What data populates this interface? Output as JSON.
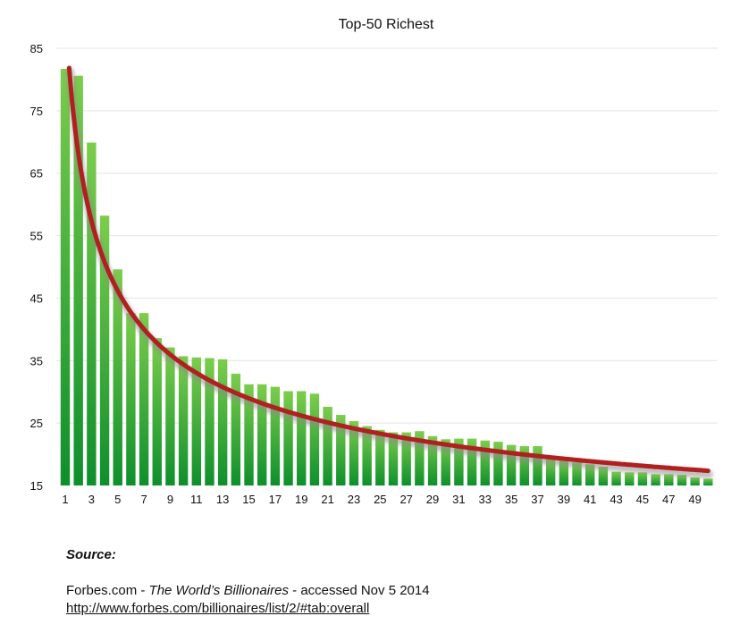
{
  "chart_data": {
    "type": "bar",
    "title": "Top-50 Richest",
    "xlabel": "",
    "ylabel": "",
    "ylim": [
      15,
      85
    ],
    "yticks": [
      15,
      25,
      35,
      45,
      55,
      65,
      75,
      85
    ],
    "xtick_labels": [
      1,
      3,
      5,
      7,
      9,
      11,
      13,
      15,
      17,
      19,
      21,
      23,
      25,
      27,
      29,
      31,
      33,
      35,
      37,
      39,
      41,
      43,
      45,
      47,
      49
    ],
    "categories": [
      1,
      2,
      3,
      4,
      5,
      6,
      7,
      8,
      9,
      10,
      11,
      12,
      13,
      14,
      15,
      16,
      17,
      18,
      19,
      20,
      21,
      22,
      23,
      24,
      25,
      26,
      27,
      28,
      29,
      30,
      31,
      32,
      33,
      34,
      35,
      36,
      37,
      38,
      39,
      40,
      41,
      42,
      43,
      44,
      45,
      46,
      47,
      48,
      49,
      50
    ],
    "values": [
      81.7,
      80.6,
      69.9,
      58.2,
      49.6,
      42.6,
      42.6,
      38.6,
      37.1,
      35.7,
      35.5,
      35.4,
      35.2,
      32.9,
      31.2,
      31.2,
      30.8,
      30.1,
      30.1,
      29.7,
      27.6,
      26.3,
      25.3,
      24.5,
      23.9,
      23.5,
      23.5,
      23.7,
      22.9,
      22.4,
      22.5,
      22.5,
      22.2,
      22.0,
      21.5,
      21.3,
      21.3,
      19.2,
      19.0,
      18.7,
      18.4,
      18.0,
      17.2,
      17.1,
      17.1,
      16.8,
      16.8,
      16.7,
      16.3,
      16.1
    ],
    "trendline": {
      "type": "power",
      "coefficient": 91.5,
      "exponent": -0.425,
      "color": "#b0201e"
    },
    "bar_color_top": "#7ccd4c",
    "bar_color_bottom": "#0d8f2c",
    "grid": true,
    "legend": "none"
  },
  "source": {
    "heading": "Source:",
    "prefix": "Forbes.com - ",
    "publication": "The World’s Billionaires",
    "suffix": " - accessed Nov 5 2014",
    "url": "http://www.forbes.com/billionaires/list/2/#tab:overall"
  }
}
